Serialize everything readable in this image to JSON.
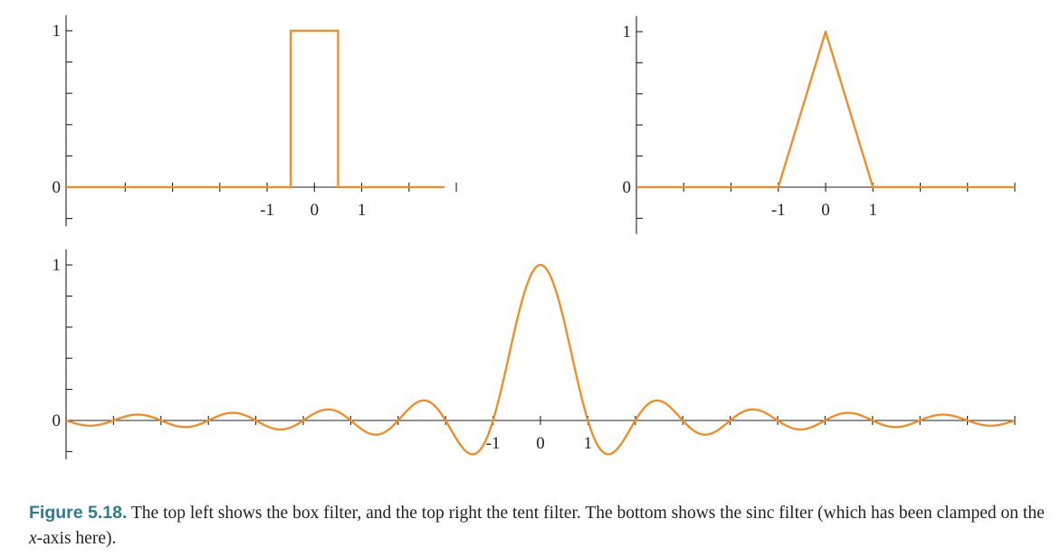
{
  "colors": {
    "curve": "#f58a1f",
    "axis": "#222222",
    "caption_label": "#2e7d8c"
  },
  "chart_data": [
    {
      "type": "line",
      "function": "box",
      "points": [
        [
          -5.25,
          0
        ],
        [
          -0.5,
          0
        ],
        [
          -0.5,
          1
        ],
        [
          0.5,
          1
        ],
        [
          0.5,
          0
        ],
        [
          2.75,
          0
        ]
      ],
      "xlim": [
        -5.25,
        2.75
      ],
      "ylim": [
        -0.25,
        1.1
      ],
      "xticks": [
        -4,
        -3,
        -2,
        -1,
        0,
        1,
        2,
        3
      ],
      "xtick_labels": [
        {
          "x": -1,
          "text": "-1"
        },
        {
          "x": 0,
          "text": "0"
        },
        {
          "x": 1,
          "text": "1"
        }
      ],
      "yticks": [
        -0.2,
        0,
        0.2,
        0.4,
        0.6,
        0.8,
        1
      ],
      "ytick_labels": [
        {
          "y": 0,
          "text": "0"
        },
        {
          "y": 1,
          "text": "1"
        }
      ],
      "grid": false
    },
    {
      "type": "line",
      "function": "tent",
      "points": [
        [
          -4,
          0
        ],
        [
          -1,
          0
        ],
        [
          0,
          1
        ],
        [
          1,
          0
        ],
        [
          4,
          0
        ]
      ],
      "xlim": [
        -4,
        4
      ],
      "ylim": [
        -0.3,
        1.1
      ],
      "xticks": [
        -4,
        -3,
        -2,
        -1,
        0,
        1,
        2,
        3,
        4
      ],
      "xtick_labels": [
        {
          "x": -1,
          "text": "-1"
        },
        {
          "x": 0,
          "text": "0"
        },
        {
          "x": 1,
          "text": "1"
        }
      ],
      "yticks": [
        -0.2,
        0,
        0.2,
        0.4,
        0.6,
        0.8,
        1
      ],
      "ytick_labels": [
        {
          "y": 0,
          "text": "0"
        },
        {
          "y": 1,
          "text": "1"
        }
      ],
      "grid": false
    },
    {
      "type": "line",
      "function": "sinc",
      "formula": "sin(pi*x)/(pi*x)",
      "xlim": [
        -10,
        10
      ],
      "ylim": [
        -0.25,
        1.1
      ],
      "xticks": [
        -10,
        -9,
        -8,
        -7,
        -6,
        -5,
        -4,
        -3,
        -2,
        -1,
        0,
        1,
        2,
        3,
        4,
        5,
        6,
        7,
        8,
        9,
        10
      ],
      "xtick_labels": [
        {
          "x": -1,
          "text": "-1"
        },
        {
          "x": 0,
          "text": "0"
        },
        {
          "x": 1,
          "text": "1"
        }
      ],
      "yticks": [
        -0.2,
        0,
        0.2,
        0.4,
        0.6,
        0.8,
        1
      ],
      "ytick_labels": [
        {
          "y": 0,
          "text": "0"
        },
        {
          "y": 1,
          "text": "1"
        }
      ],
      "grid": false
    }
  ],
  "caption": {
    "label": "Figure 5.18.",
    "text_1": " The top left shows the box filter, and the top right the tent filter. The bottom shows the sinc filter (which has been clamped on the ",
    "math": "x",
    "text_2": "-axis here)."
  }
}
